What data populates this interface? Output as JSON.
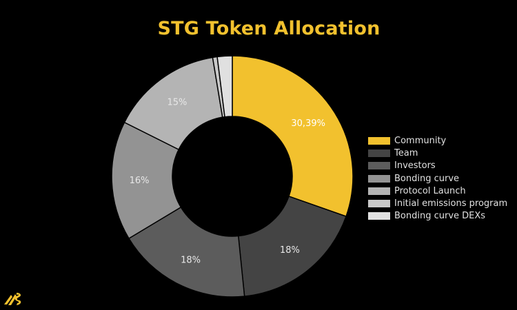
{
  "chart_data": {
    "type": "pie",
    "title": "STG Token Allocation",
    "categories": [
      "Community",
      "Team",
      "Investors",
      "Bonding curve",
      "Protocol Launch",
      "Initial emissions program",
      "Bonding curve DEXs"
    ],
    "values": [
      30.39,
      18,
      18,
      16,
      15,
      0.61,
      2
    ],
    "labels": [
      "30,39%",
      "18%",
      "18%",
      "16%",
      "15%",
      "",
      ""
    ],
    "colors": [
      "#f2c12e",
      "#444444",
      "#5c5c5c",
      "#939393",
      "#b4b4b4",
      "#c8c8c8",
      "#e0e0e0"
    ],
    "legend_position": "right"
  },
  "brand": {
    "logo_icon": "stargate-logo-icon"
  }
}
